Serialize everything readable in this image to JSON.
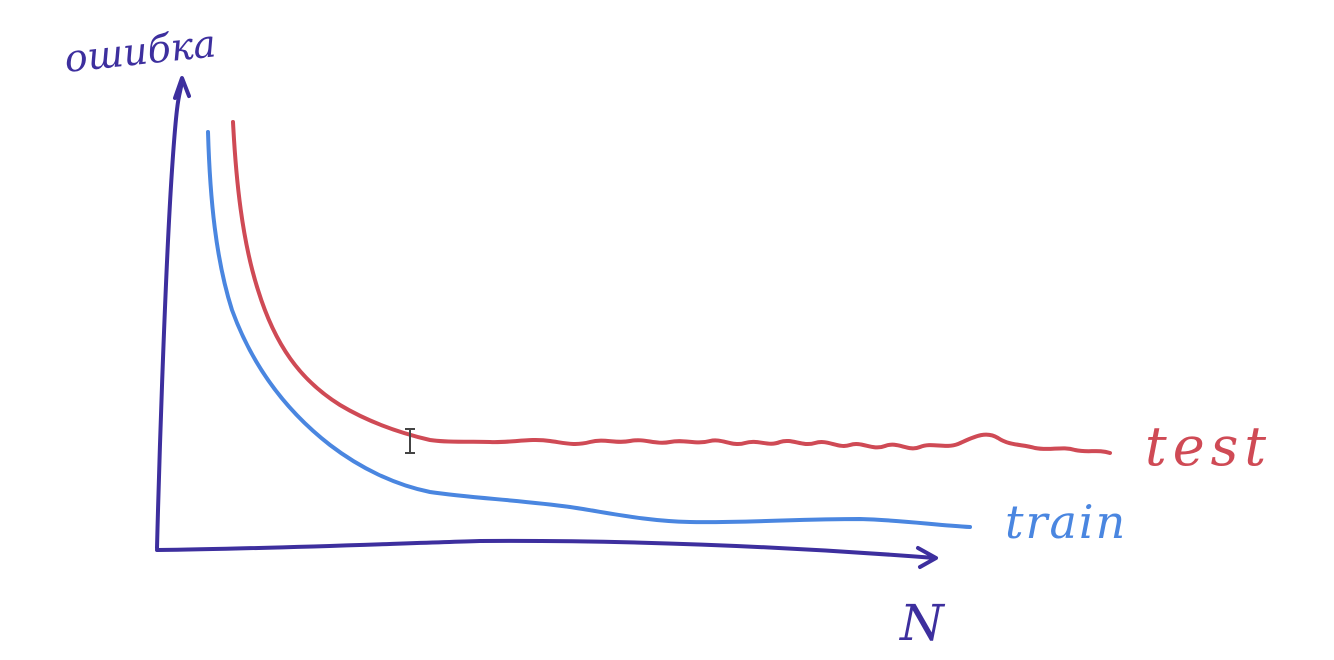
{
  "diagram": {
    "y_axis_label": "ошибка",
    "x_axis_label": "N",
    "colors": {
      "axes": "#3d2f9e",
      "train": "#4a86e0",
      "test": "#cf4a55"
    }
  },
  "chart_data": {
    "type": "line",
    "xlabel": "N",
    "ylabel": "ошибка",
    "series": [
      {
        "name": "test",
        "color": "#cf4a55"
      },
      {
        "name": "train",
        "color": "#4a86e0"
      }
    ]
  }
}
